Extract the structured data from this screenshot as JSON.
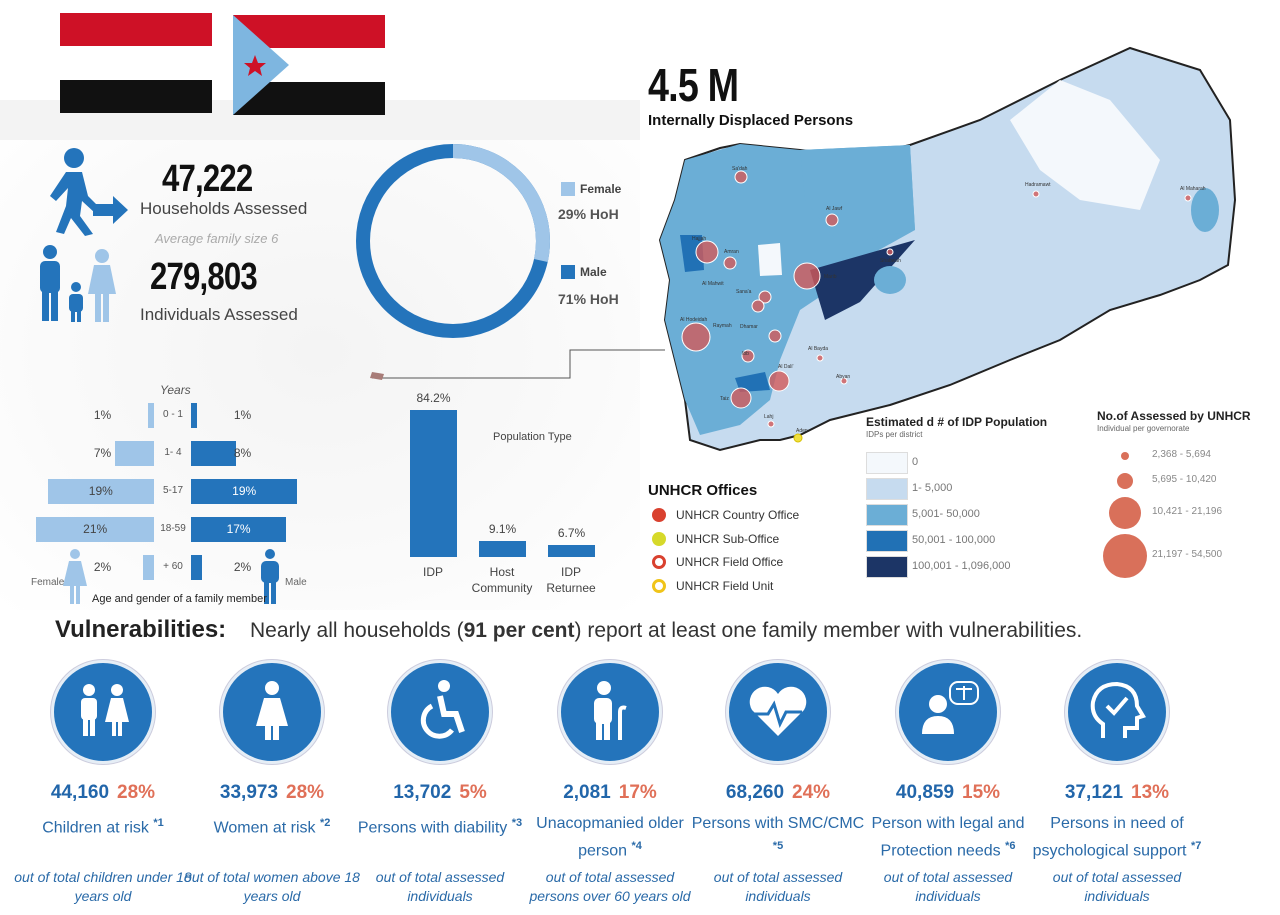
{
  "headline": {
    "value": "4.5 M",
    "label": "Internally Displaced Persons"
  },
  "households": {
    "value": "47,222",
    "label": "Households Assessed"
  },
  "family_size": "Average family size  6",
  "individuals": {
    "value": "279,803",
    "label": "Individuals Assessed"
  },
  "hoh": {
    "female_label": "Female",
    "female_value": "29% HoH",
    "female_pct": 29,
    "male_label": "Male",
    "male_value": "71% HoH",
    "male_pct": 71
  },
  "pyramid": {
    "title": "Years",
    "caption": "Age and gender of a family member",
    "female_label": "Female",
    "male_label": "Male",
    "rows": [
      {
        "age": "0 - 1",
        "female": 1,
        "male": 1,
        "female_text": "1%",
        "male_text": "1%"
      },
      {
        "age": "1- 4",
        "female": 7,
        "male": 8,
        "female_text": "7%",
        "male_text": "8%"
      },
      {
        "age": "5-17",
        "female": 19,
        "male": 19,
        "female_text": "19%",
        "male_text": "19%"
      },
      {
        "age": "18-59",
        "female": 21,
        "male": 17,
        "female_text": "21%",
        "male_text": "17%"
      },
      {
        "age": "+ 60",
        "female": 2,
        "male": 2,
        "female_text": "2%",
        "male_text": "2%"
      }
    ]
  },
  "chart_data": {
    "type": "bar",
    "title": "Population Type",
    "categories": [
      "IDP",
      "Host Community",
      "IDP Returnee"
    ],
    "values": [
      84.2,
      9.1,
      6.7
    ],
    "labels": [
      "84.2%",
      "9.1%",
      "6.7%"
    ],
    "ylim": [
      0,
      100
    ]
  },
  "offices": {
    "title": "UNHCR Offices",
    "items": [
      {
        "label": "UNHCR Country Office",
        "color": "#d9412f"
      },
      {
        "label": "UNHCR Sub-Office",
        "color": "#d6d92a"
      },
      {
        "label": "UNHCR Field Office",
        "color": "#d9412f"
      },
      {
        "label": "UNHCR Field Unit",
        "color": "#f0c419"
      }
    ]
  },
  "idp_legend": {
    "title": "Estimated d # of IDP Population",
    "subtitle": "IDPs per district",
    "items": [
      {
        "label": "0",
        "color": "#f4f8fc"
      },
      {
        "label": "1- 5,000",
        "color": "#c6dbef"
      },
      {
        "label": "5,001- 50,000",
        "color": "#6baed6"
      },
      {
        "label": "50,001 - 100,000",
        "color": "#2171b5"
      },
      {
        "label": "100,001 - 1,096,000",
        "color": "#1c3566"
      }
    ]
  },
  "assessed_legend": {
    "title": "No.of Assessed by UNHCR",
    "subtitle": "Individual per governorate",
    "items": [
      {
        "label": "2,368 - 5,694"
      },
      {
        "label": "5,695 - 10,420"
      },
      {
        "label": "10,421 - 21,196"
      },
      {
        "label": "21,197 - 54,500"
      }
    ]
  },
  "map_labels": [
    "Sa'dah",
    "Al Jawf",
    "Hadramawt",
    "Al Maharah",
    "Amran",
    "Hajjah",
    "Marib",
    "Al Mahwit",
    "Sana'a",
    "Al Hodeidah",
    "Raymah",
    "Dhamar",
    "Al Bayda",
    "Shabwah",
    "Ibb",
    "Al Dali'",
    "Taiz",
    "Abyan",
    "Lahj",
    "Aden"
  ],
  "vulnerabilities": {
    "title": "Vulnerabilities:",
    "text_pre": "Nearly all households (",
    "text_bold": "91 per cent",
    "text_post": ") report at least one family member with vulnerabilities.",
    "items": [
      {
        "icon": "children-icon",
        "count": "44,160",
        "pct": "28%",
        "label": "Children at risk",
        "ref": "*1",
        "note": "out of total children under 18 years old"
      },
      {
        "icon": "woman-icon",
        "count": "33,973",
        "pct": "28%",
        "label": "Women at risk",
        "ref": "*2",
        "note": "out of total women above 18 years old"
      },
      {
        "icon": "wheelchair-icon",
        "count": "13,702",
        "pct": "5%",
        "label": "Persons with diability",
        "ref": "*3",
        "note": "out of total assessed individuals"
      },
      {
        "icon": "elderly-person-icon",
        "count": "2,081",
        "pct": "17%",
        "label": "Unacopmanied older person",
        "ref": "*4",
        "note": "out of total assessed persons over 60 years old"
      },
      {
        "icon": "heart-pulse-icon",
        "count": "68,260",
        "pct": "24%",
        "label": "Persons with SMC/CMC",
        "ref": "*5",
        "note": "out of  total assessed individuals"
      },
      {
        "icon": "legal-scales-icon",
        "count": "40,859",
        "pct": "15%",
        "label": "Person with legal and Protection needs",
        "ref": "*6",
        "note": "out of  total assessed individuals"
      },
      {
        "icon": "head-check-icon",
        "count": "37,121",
        "pct": "13%",
        "label": "Persons in need of psychological support",
        "ref": "*7",
        "note": "out of  total assessed individuals"
      }
    ]
  },
  "colors": {
    "primary": "#2474bb",
    "light": "#9fc5e8",
    "accent": "#e07058"
  }
}
